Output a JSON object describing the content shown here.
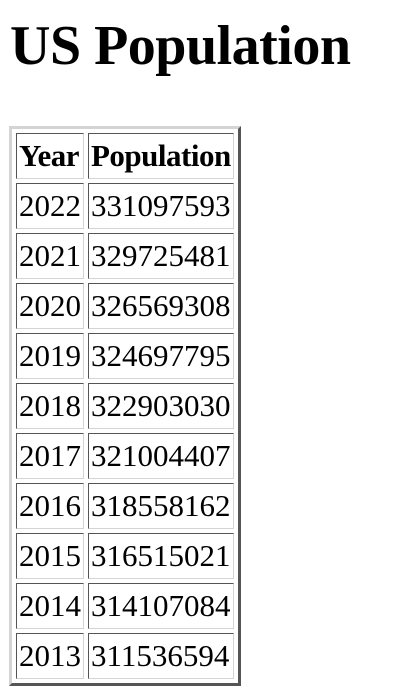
{
  "page": {
    "title": "US Population"
  },
  "table": {
    "headers": [
      "Year",
      "Population"
    ],
    "rows": [
      [
        "2022",
        "331097593"
      ],
      [
        "2021",
        "329725481"
      ],
      [
        "2020",
        "326569308"
      ],
      [
        "2019",
        "324697795"
      ],
      [
        "2018",
        "322903030"
      ],
      [
        "2017",
        "321004407"
      ],
      [
        "2016",
        "318558162"
      ],
      [
        "2015",
        "316515021"
      ],
      [
        "2014",
        "314107084"
      ],
      [
        "2013",
        "311536594"
      ]
    ]
  }
}
